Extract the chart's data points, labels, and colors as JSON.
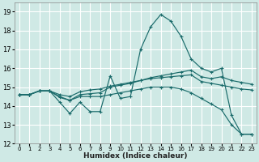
{
  "title": "",
  "xlabel": "Humidex (Indice chaleur)",
  "bg_color": "#cfe9e5",
  "grid_color": "#ffffff",
  "line_color": "#1a6b6b",
  "xlim": [
    -0.5,
    23.5
  ],
  "ylim": [
    12,
    19.5
  ],
  "yticks": [
    12,
    13,
    14,
    15,
    16,
    17,
    18,
    19
  ],
  "xticks": [
    0,
    1,
    2,
    3,
    4,
    5,
    6,
    7,
    8,
    9,
    10,
    11,
    12,
    13,
    14,
    15,
    16,
    17,
    18,
    19,
    20,
    21,
    22,
    23
  ],
  "series": [
    [
      14.6,
      14.6,
      14.8,
      14.8,
      14.2,
      13.6,
      14.2,
      13.7,
      13.7,
      15.6,
      14.4,
      14.5,
      17.0,
      18.2,
      18.85,
      18.5,
      17.7,
      16.5,
      16.0,
      15.8,
      16.0,
      13.5,
      12.5,
      12.5
    ],
    [
      14.6,
      14.6,
      14.8,
      14.8,
      14.45,
      14.3,
      14.6,
      14.65,
      14.7,
      15.0,
      15.1,
      15.2,
      15.35,
      15.5,
      15.6,
      15.7,
      15.8,
      15.9,
      15.55,
      15.45,
      15.55,
      15.35,
      15.25,
      15.15
    ],
    [
      14.6,
      14.6,
      14.8,
      14.8,
      14.6,
      14.5,
      14.75,
      14.85,
      14.9,
      15.05,
      15.15,
      15.25,
      15.35,
      15.45,
      15.5,
      15.55,
      15.6,
      15.65,
      15.3,
      15.2,
      15.1,
      15.0,
      14.9,
      14.85
    ],
    [
      14.6,
      14.6,
      14.8,
      14.8,
      14.5,
      14.3,
      14.5,
      14.5,
      14.5,
      14.6,
      14.7,
      14.8,
      14.9,
      15.0,
      15.0,
      15.0,
      14.9,
      14.7,
      14.4,
      14.1,
      13.8,
      13.0,
      12.5,
      12.5
    ]
  ]
}
